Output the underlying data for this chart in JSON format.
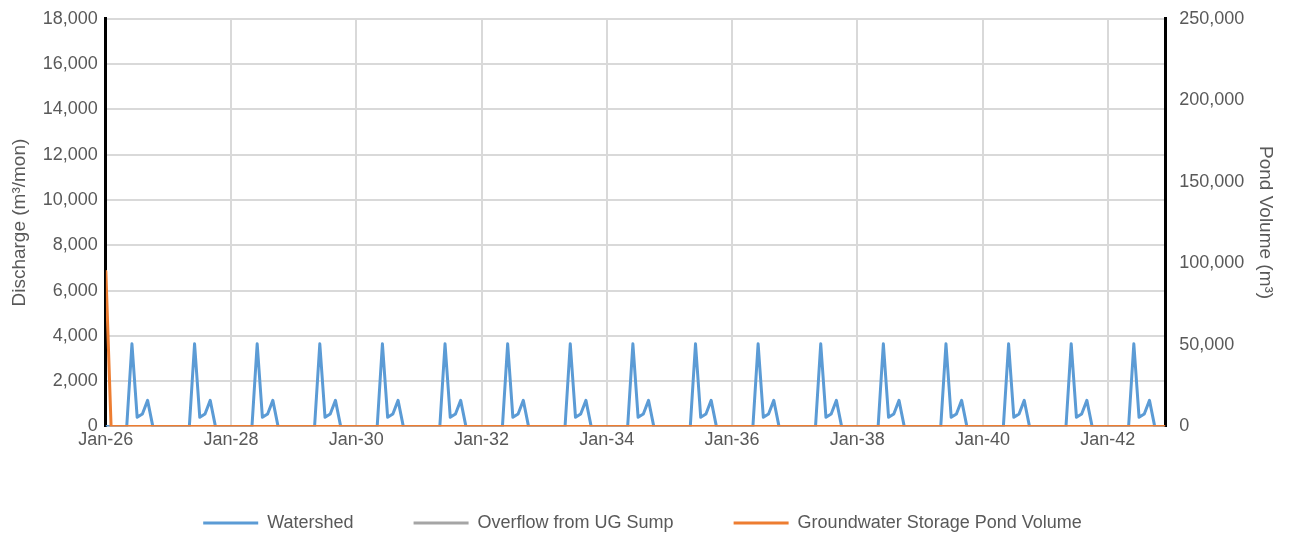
{
  "chart_data": {
    "type": "line",
    "ylabel": "Discharge (m³/mon)",
    "y2label": "Pond Volume (m³)",
    "xlim": [
      "2026-01",
      "2042-12"
    ],
    "xticks": [
      {
        "value": "2026-01",
        "label": "Jan-26"
      },
      {
        "value": "2028-01",
        "label": "Jan-28"
      },
      {
        "value": "2030-01",
        "label": "Jan-30"
      },
      {
        "value": "2032-01",
        "label": "Jan-32"
      },
      {
        "value": "2034-01",
        "label": "Jan-34"
      },
      {
        "value": "2036-01",
        "label": "Jan-36"
      },
      {
        "value": "2038-01",
        "label": "Jan-38"
      },
      {
        "value": "2040-01",
        "label": "Jan-40"
      },
      {
        "value": "2042-01",
        "label": "Jan-42"
      }
    ],
    "ylim": [
      0,
      18000
    ],
    "yticks": [
      0,
      {
        "value": 2000,
        "label": "2,000"
      },
      {
        "value": 4000,
        "label": "4,000"
      },
      {
        "value": 6000,
        "label": "6,000"
      },
      {
        "value": 8000,
        "label": "8,000"
      },
      {
        "value": 10000,
        "label": "10,000"
      },
      {
        "value": 12000,
        "label": "12,000"
      },
      {
        "value": 14000,
        "label": "14,000"
      },
      {
        "value": 16000,
        "label": "16,000"
      },
      {
        "value": 18000,
        "label": "18,000"
      }
    ],
    "y2lim": [
      0,
      250000
    ],
    "y2ticks": [
      0,
      {
        "value": 50000,
        "label": "50,000"
      },
      {
        "value": 100000,
        "label": "100,000"
      },
      {
        "value": 150000,
        "label": "150,000"
      },
      {
        "value": 200000,
        "label": "200,000"
      },
      {
        "value": 250000,
        "label": "250,000"
      }
    ],
    "grid": true,
    "legend": "bottom",
    "marker": "none",
    "line_style": "solid",
    "series": [
      {
        "name": "Watershed",
        "color": "#5b9bd5",
        "x": [
          "2026-01",
          "2026-05",
          "2026-06",
          "2026-07",
          "2026-08",
          "2026-09",
          "2026-10",
          "2027-05",
          "2027-06",
          "2027-07",
          "2027-08",
          "2027-09",
          "2027-10",
          "2028-05",
          "2028-06",
          "2028-07",
          "2028-08",
          "2028-09",
          "2028-10",
          "2029-05",
          "2029-06",
          "2029-07",
          "2029-08",
          "2029-09",
          "2029-10",
          "2030-05",
          "2030-06",
          "2030-07",
          "2030-08",
          "2030-09",
          "2030-10",
          "2031-05",
          "2031-06",
          "2031-07",
          "2031-08",
          "2031-09",
          "2031-10",
          "2032-05",
          "2032-06",
          "2032-07",
          "2032-08",
          "2032-09",
          "2032-10",
          "2033-05",
          "2033-06",
          "2033-07",
          "2033-08",
          "2033-09",
          "2033-10",
          "2034-05",
          "2034-06",
          "2034-07",
          "2034-08",
          "2034-09",
          "2034-10",
          "2035-05",
          "2035-06",
          "2035-07",
          "2035-08",
          "2035-09",
          "2035-10",
          "2036-05",
          "2036-06",
          "2036-07",
          "2036-08",
          "2036-09",
          "2036-10",
          "2037-05",
          "2037-06",
          "2037-07",
          "2037-08",
          "2037-09",
          "2037-10",
          "2038-05",
          "2038-06",
          "2038-07",
          "2038-08",
          "2038-09",
          "2038-10",
          "2039-05",
          "2039-06",
          "2039-07",
          "2039-08",
          "2039-09",
          "2039-10",
          "2040-05",
          "2040-06",
          "2040-07",
          "2040-08",
          "2040-09",
          "2040-10",
          "2041-05",
          "2041-06",
          "2041-07",
          "2041-08",
          "2041-09",
          "2041-10",
          "2042-05",
          "2042-06",
          "2042-07",
          "2042-08",
          "2042-09",
          "2042-10",
          "2042-12"
        ],
        "values": [
          0,
          0,
          3650,
          400,
          550,
          1150,
          0,
          0,
          3650,
          400,
          550,
          1150,
          0,
          0,
          3650,
          400,
          550,
          1150,
          0,
          0,
          3650,
          400,
          550,
          1150,
          0,
          0,
          3650,
          400,
          550,
          1150,
          0,
          0,
          3650,
          400,
          550,
          1150,
          0,
          0,
          3650,
          400,
          550,
          1150,
          0,
          0,
          3650,
          400,
          550,
          1150,
          0,
          0,
          3650,
          400,
          550,
          1150,
          0,
          0,
          3650,
          400,
          550,
          1150,
          0,
          0,
          3650,
          400,
          550,
          1150,
          0,
          0,
          3650,
          400,
          550,
          1150,
          0,
          0,
          3650,
          400,
          550,
          1150,
          0,
          0,
          3650,
          400,
          550,
          1150,
          0,
          0,
          3650,
          400,
          550,
          1150,
          0,
          0,
          3650,
          400,
          550,
          1150,
          0,
          0,
          3650,
          400,
          550,
          1150,
          0,
          0
        ]
      },
      {
        "name": "Overflow from UG Sump",
        "color": "#a5a5a5"
      },
      {
        "name": "Groundwater Storage Pond Volume",
        "color": "#ed7d31",
        "axis": "y2",
        "x": [
          "2026-01",
          "2026-02",
          "2042-12"
        ],
        "values": [
          95000,
          0,
          0
        ]
      }
    ]
  }
}
